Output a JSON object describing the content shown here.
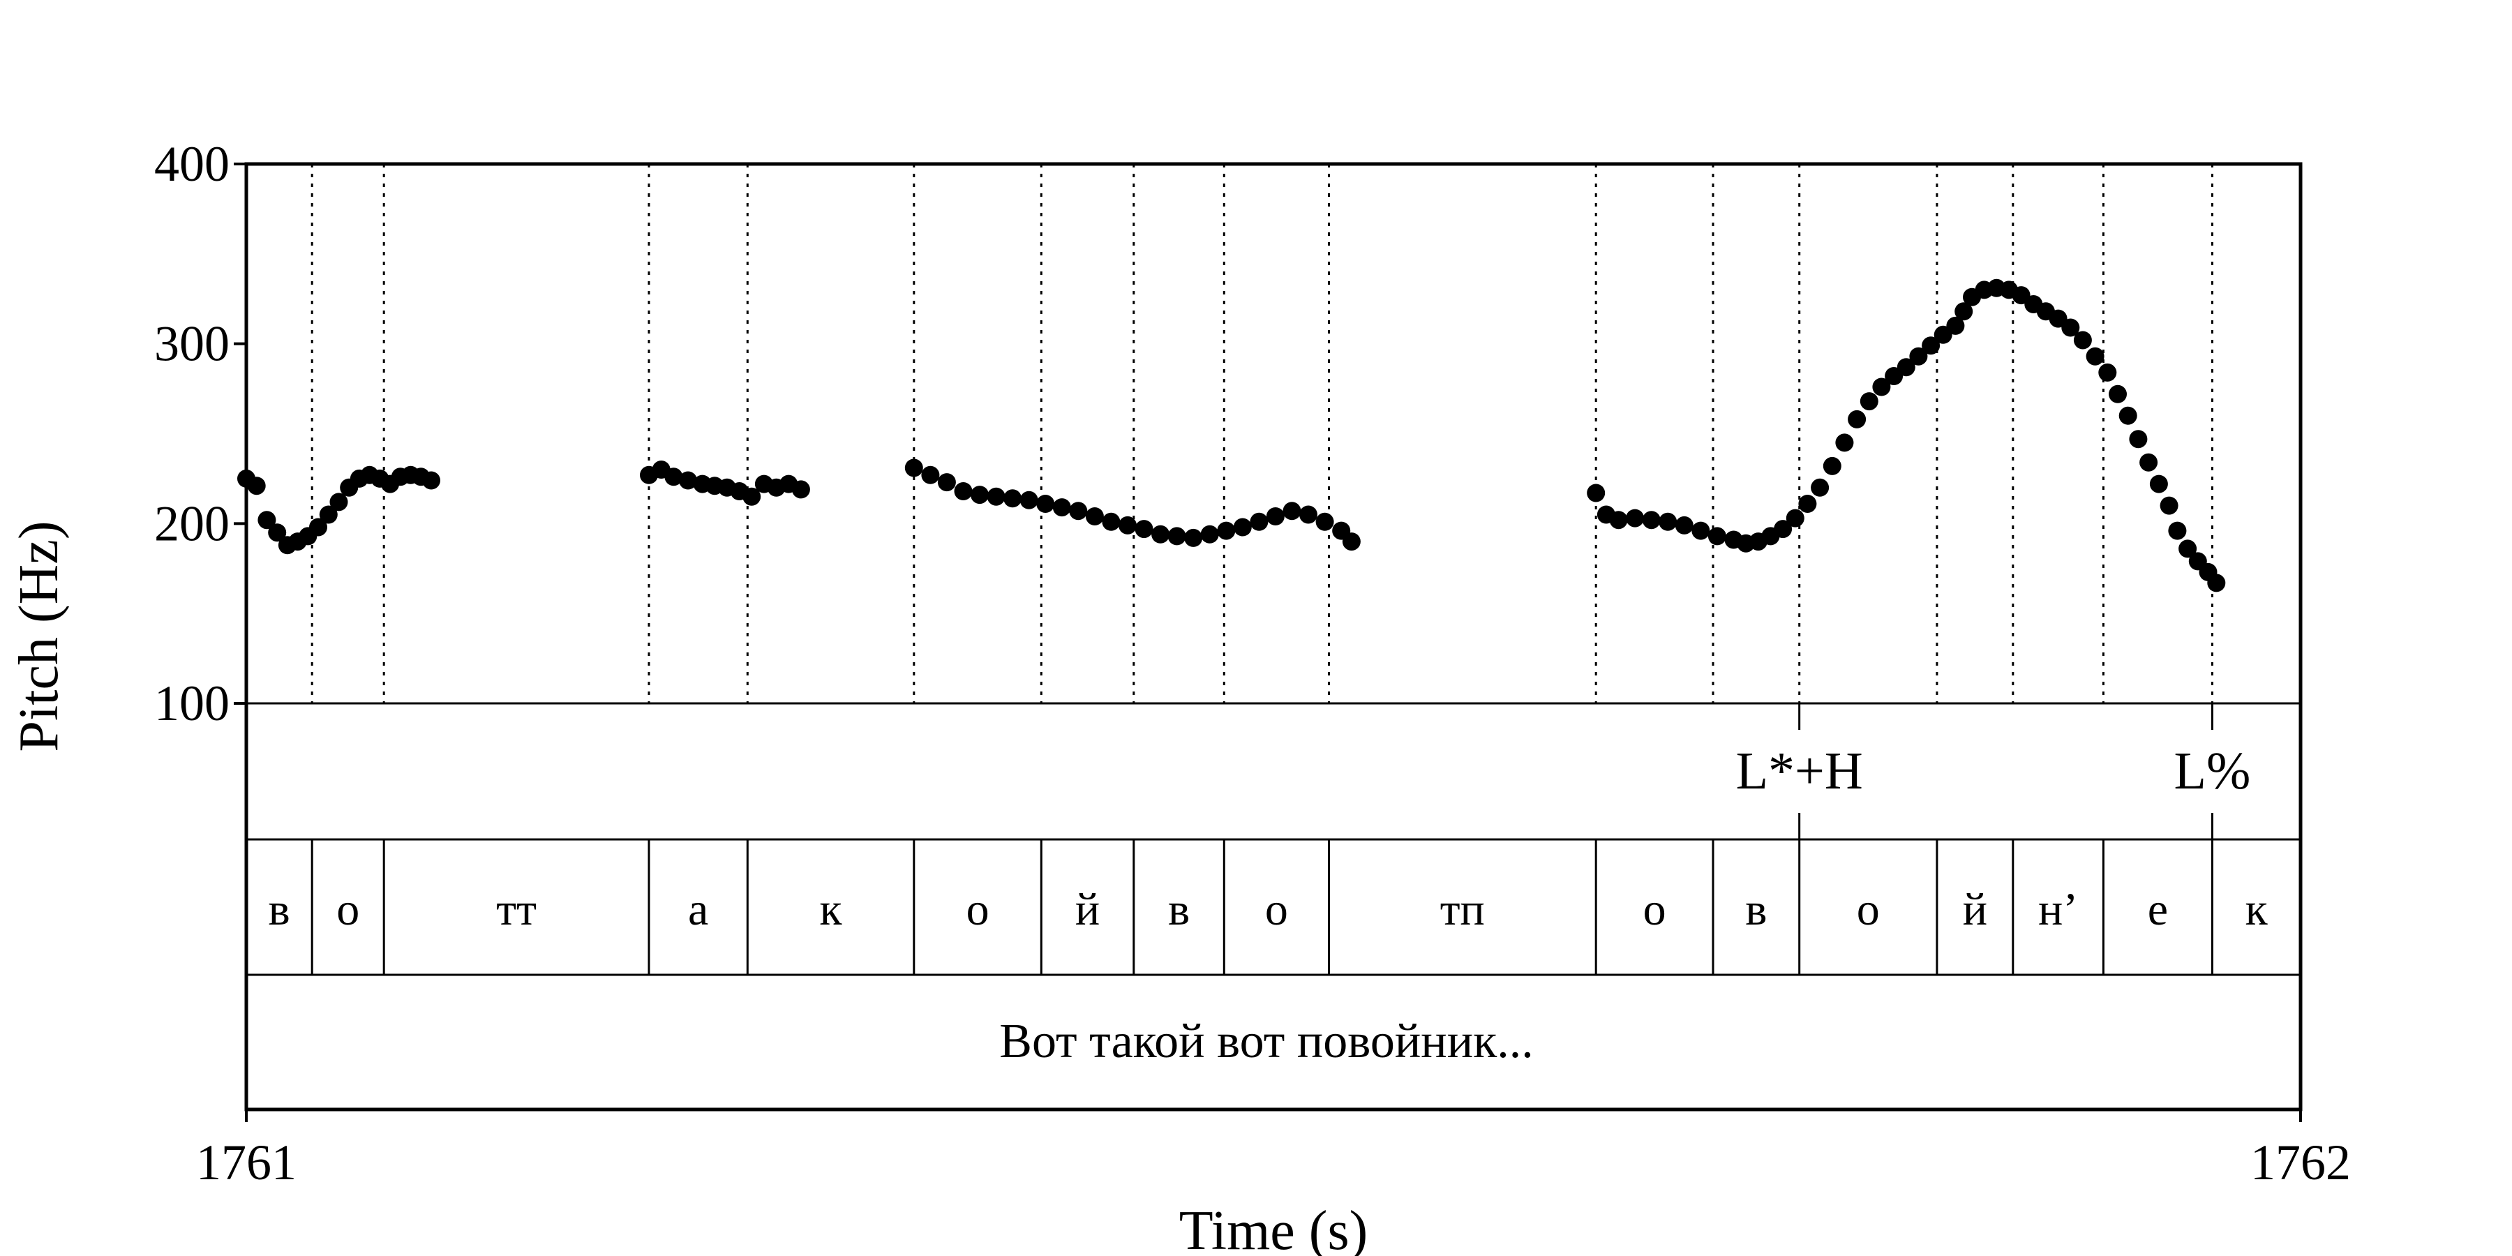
{
  "chart_data": {
    "type": "scatter",
    "title": "",
    "xlabel": "Time (s)",
    "ylabel": "Pitch (Hz)",
    "xlim": [
      1761,
      1762
    ],
    "ylim": [
      100,
      400
    ],
    "x_ticks": [
      {
        "value": 1761,
        "label": "1761"
      },
      {
        "value": 1762,
        "label": "1762"
      }
    ],
    "y_ticks": [
      {
        "value": 100,
        "label": "100"
      },
      {
        "value": 200,
        "label": "200"
      },
      {
        "value": 300,
        "label": "300"
      },
      {
        "value": 400,
        "label": "400"
      }
    ],
    "segment_boundaries": [
      1761.032,
      1761.067,
      1761.196,
      1761.244,
      1761.325,
      1761.387,
      1761.432,
      1761.476,
      1761.527,
      1761.657,
      1761.714,
      1761.756,
      1761.823,
      1761.86,
      1761.904,
      1761.957
    ],
    "pitch_contour": [
      [
        1761.0,
        225
      ],
      [
        1761.005,
        221
      ],
      [
        1761.01,
        202
      ],
      [
        1761.015,
        195
      ],
      [
        1761.02,
        188
      ],
      [
        1761.025,
        190
      ],
      [
        1761.03,
        193
      ],
      [
        1761.035,
        198
      ],
      [
        1761.04,
        205
      ],
      [
        1761.045,
        212
      ],
      [
        1761.05,
        220
      ],
      [
        1761.055,
        225
      ],
      [
        1761.06,
        227
      ],
      [
        1761.065,
        225
      ],
      [
        1761.07,
        222
      ],
      [
        1761.075,
        226
      ],
      [
        1761.08,
        227
      ],
      [
        1761.085,
        226
      ],
      [
        1761.09,
        224
      ],
      [
        1761.196,
        227
      ],
      [
        1761.202,
        230
      ],
      [
        1761.208,
        226
      ],
      [
        1761.215,
        224
      ],
      [
        1761.222,
        222
      ],
      [
        1761.228,
        221
      ],
      [
        1761.234,
        220
      ],
      [
        1761.24,
        218
      ],
      [
        1761.246,
        215
      ],
      [
        1761.252,
        222
      ],
      [
        1761.258,
        220
      ],
      [
        1761.264,
        222
      ],
      [
        1761.27,
        219
      ],
      [
        1761.325,
        231
      ],
      [
        1761.333,
        227
      ],
      [
        1761.341,
        223
      ],
      [
        1761.349,
        218
      ],
      [
        1761.357,
        216
      ],
      [
        1761.365,
        215
      ],
      [
        1761.373,
        214
      ],
      [
        1761.381,
        213
      ],
      [
        1761.389,
        211
      ],
      [
        1761.397,
        209
      ],
      [
        1761.405,
        207
      ],
      [
        1761.413,
        204
      ],
      [
        1761.421,
        201
      ],
      [
        1761.429,
        199
      ],
      [
        1761.437,
        197
      ],
      [
        1761.445,
        194
      ],
      [
        1761.453,
        193
      ],
      [
        1761.461,
        192
      ],
      [
        1761.469,
        194
      ],
      [
        1761.477,
        196
      ],
      [
        1761.485,
        198
      ],
      [
        1761.493,
        201
      ],
      [
        1761.501,
        204
      ],
      [
        1761.509,
        207
      ],
      [
        1761.517,
        205
      ],
      [
        1761.525,
        201
      ],
      [
        1761.533,
        196
      ],
      [
        1761.538,
        190
      ],
      [
        1761.657,
        217
      ],
      [
        1761.662,
        205
      ],
      [
        1761.668,
        202
      ],
      [
        1761.676,
        203
      ],
      [
        1761.684,
        202
      ],
      [
        1761.692,
        201
      ],
      [
        1761.7,
        199
      ],
      [
        1761.708,
        196
      ],
      [
        1761.716,
        193
      ],
      [
        1761.724,
        191
      ],
      [
        1761.73,
        189
      ],
      [
        1761.736,
        190
      ],
      [
        1761.742,
        193
      ],
      [
        1761.748,
        197
      ],
      [
        1761.754,
        203
      ],
      [
        1761.76,
        211
      ],
      [
        1761.766,
        220
      ],
      [
        1761.772,
        232
      ],
      [
        1761.778,
        245
      ],
      [
        1761.784,
        258
      ],
      [
        1761.79,
        268
      ],
      [
        1761.796,
        276
      ],
      [
        1761.802,
        282
      ],
      [
        1761.808,
        287
      ],
      [
        1761.814,
        293
      ],
      [
        1761.82,
        299
      ],
      [
        1761.826,
        305
      ],
      [
        1761.832,
        310
      ],
      [
        1761.836,
        318
      ],
      [
        1761.84,
        326
      ],
      [
        1761.846,
        330
      ],
      [
        1761.852,
        331
      ],
      [
        1761.858,
        330
      ],
      [
        1761.864,
        327
      ],
      [
        1761.87,
        322
      ],
      [
        1761.876,
        318
      ],
      [
        1761.882,
        314
      ],
      [
        1761.888,
        309
      ],
      [
        1761.894,
        302
      ],
      [
        1761.9,
        293
      ],
      [
        1761.906,
        284
      ],
      [
        1761.911,
        272
      ],
      [
        1761.916,
        260
      ],
      [
        1761.921,
        247
      ],
      [
        1761.926,
        234
      ],
      [
        1761.931,
        222
      ],
      [
        1761.936,
        210
      ],
      [
        1761.94,
        196
      ],
      [
        1761.945,
        186
      ],
      [
        1761.95,
        179
      ],
      [
        1761.955,
        173
      ],
      [
        1761.959,
        167
      ]
    ],
    "tones": [
      {
        "time": 1761.756,
        "label": "L*+H"
      },
      {
        "time": 1761.957,
        "label": "L%"
      }
    ],
    "segments": [
      {
        "start": 1761.0,
        "end": 1761.032,
        "label": "в"
      },
      {
        "start": 1761.032,
        "end": 1761.067,
        "label": "о"
      },
      {
        "start": 1761.067,
        "end": 1761.196,
        "label": "тт"
      },
      {
        "start": 1761.196,
        "end": 1761.244,
        "label": "а"
      },
      {
        "start": 1761.244,
        "end": 1761.325,
        "label": "к"
      },
      {
        "start": 1761.325,
        "end": 1761.387,
        "label": "о"
      },
      {
        "start": 1761.387,
        "end": 1761.432,
        "label": "й"
      },
      {
        "start": 1761.432,
        "end": 1761.476,
        "label": "в"
      },
      {
        "start": 1761.476,
        "end": 1761.527,
        "label": "о"
      },
      {
        "start": 1761.527,
        "end": 1761.657,
        "label": "тп"
      },
      {
        "start": 1761.657,
        "end": 1761.714,
        "label": "о"
      },
      {
        "start": 1761.714,
        "end": 1761.756,
        "label": "в"
      },
      {
        "start": 1761.756,
        "end": 1761.823,
        "label": "о"
      },
      {
        "start": 1761.823,
        "end": 1761.86,
        "label": "й"
      },
      {
        "start": 1761.86,
        "end": 1761.904,
        "label": "н’"
      },
      {
        "start": 1761.904,
        "end": 1761.957,
        "label": "е"
      },
      {
        "start": 1761.957,
        "end": 1762.0,
        "label": "к"
      }
    ],
    "sentence": "Вот такой вот повойник..."
  }
}
